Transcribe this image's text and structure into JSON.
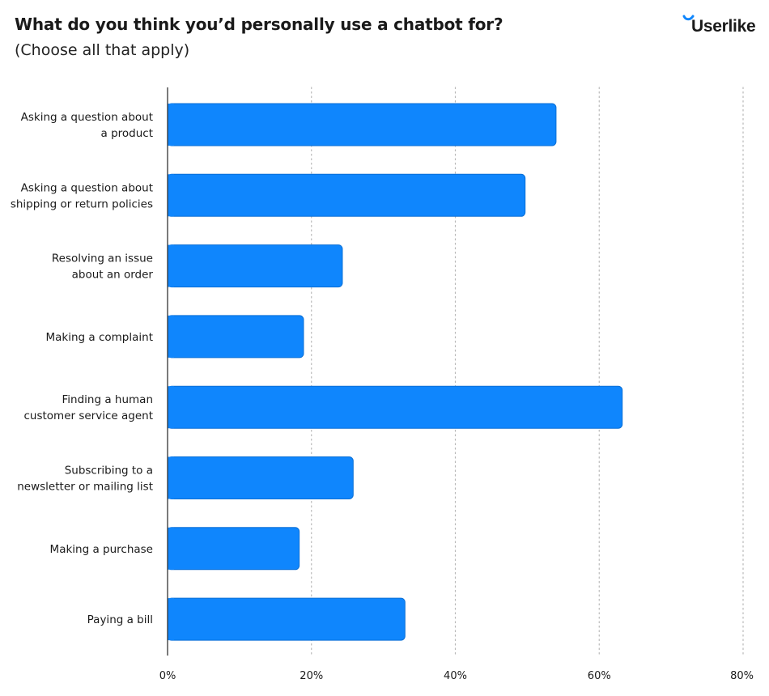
{
  "header": {
    "title": "What do you think you’d personally use a chatbot for?",
    "subtitle": "(Choose all that apply)",
    "logo_text": "Userlike"
  },
  "colors": {
    "bar": "#0f86fd",
    "bar_stroke": "#0a6fd6",
    "grid": "#b8b8b8",
    "axis": "#333333",
    "logo_accent": "#0f86fd"
  },
  "chart_data": {
    "type": "bar",
    "orientation": "horizontal",
    "categories": [
      [
        "Asking a question about",
        "a product"
      ],
      [
        "Asking a question about",
        "shipping or return policies"
      ],
      [
        "Resolving an issue",
        "about an order"
      ],
      [
        "Making a complaint"
      ],
      [
        "Finding a human",
        "customer service agent"
      ],
      [
        "Subscribing to a",
        "newsletter or mailing list"
      ],
      [
        "Making a purchase"
      ],
      [
        "Paying a bill"
      ]
    ],
    "values": [
      54,
      49.7,
      24.3,
      18.9,
      63.2,
      25.8,
      18.3,
      33
    ],
    "xlim": [
      0,
      80
    ],
    "xticks": [
      0,
      20,
      40,
      60,
      80
    ],
    "xtick_labels": [
      "0%",
      "20%",
      "40%",
      "60%",
      "80%"
    ],
    "grid": "vertical dotted",
    "legend": "none",
    "title": "What do you think you’d personally use a chatbot for?",
    "subtitle": "(Choose all that apply)"
  }
}
